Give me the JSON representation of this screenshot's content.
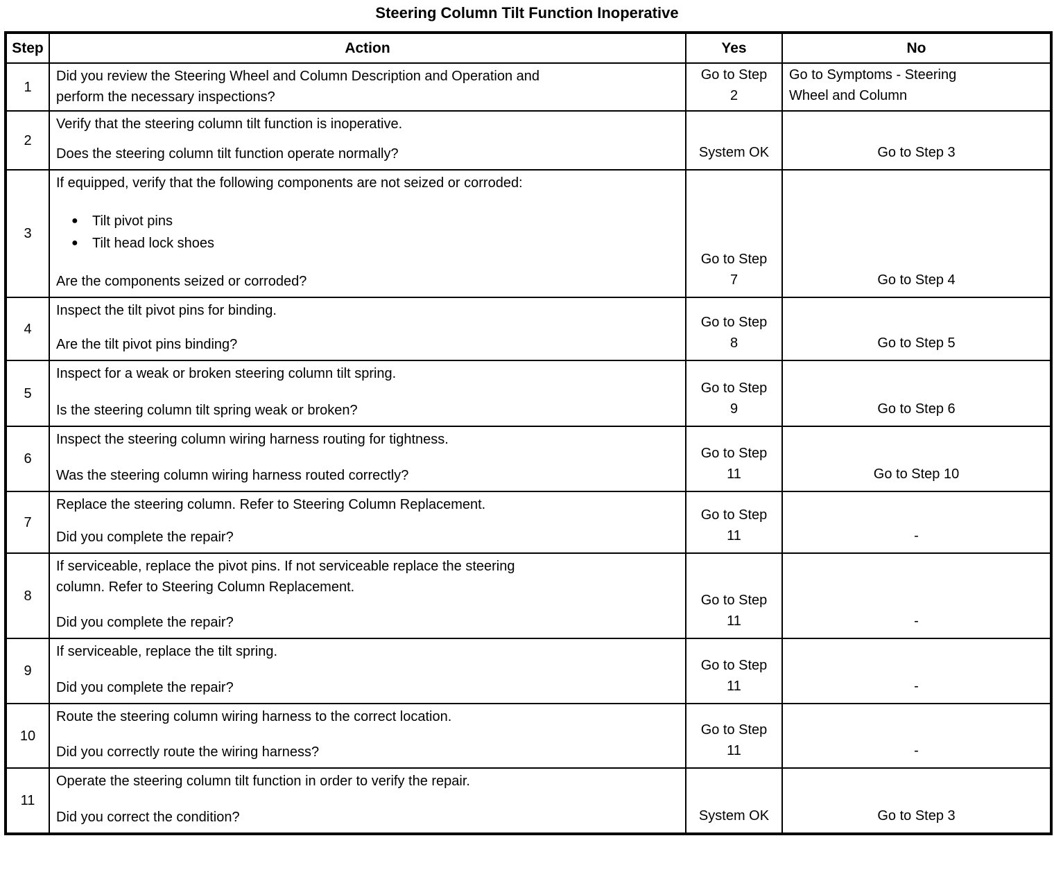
{
  "title": "Steering Column Tilt Function Inoperative",
  "table": {
    "headers": {
      "step": "Step",
      "action": "Action",
      "yes": "Yes",
      "no": "No"
    },
    "rows": [
      {
        "step": "1",
        "action": {
          "intro": [
            "Did you review the Steering Wheel and Column Description and Operation and",
            "perform the necessary inspections?"
          ],
          "bullets": [],
          "question": []
        },
        "yes": [
          "Go to Step",
          "2"
        ],
        "no": [
          "Go to Symptoms - Steering",
          "Wheel and Column"
        ]
      },
      {
        "step": "2",
        "action": {
          "intro": [
            "Verify that the steering column tilt function is inoperative."
          ],
          "bullets": [],
          "question": [
            "Does the steering column tilt function operate normally?"
          ]
        },
        "yes": [
          "System OK"
        ],
        "no": [
          "Go to Step 3"
        ]
      },
      {
        "step": "3",
        "action": {
          "intro": [
            "If equipped, verify that the following components are not seized or corroded:"
          ],
          "bullets": [
            "Tilt pivot pins",
            "Tilt head lock shoes"
          ],
          "question": [
            "Are the components seized or corroded?"
          ]
        },
        "yes": [
          "Go to Step",
          "7"
        ],
        "no": [
          "Go to Step 4"
        ]
      },
      {
        "step": "4",
        "action": {
          "intro": [
            "Inspect the tilt pivot pins for binding."
          ],
          "bullets": [],
          "question": [
            "Are the tilt pivot pins binding?"
          ]
        },
        "yes": [
          "Go to Step",
          "8"
        ],
        "no": [
          "Go to Step 5"
        ]
      },
      {
        "step": "5",
        "action": {
          "intro": [
            "Inspect for a weak or broken steering column tilt spring."
          ],
          "bullets": [],
          "question": [
            "Is the steering column tilt spring weak or broken?"
          ]
        },
        "yes": [
          "Go to Step",
          "9"
        ],
        "no": [
          "Go to Step 6"
        ]
      },
      {
        "step": "6",
        "action": {
          "intro": [
            "Inspect the steering column wiring harness routing for tightness."
          ],
          "bullets": [],
          "question": [
            "Was the steering column wiring harness routed correctly?"
          ]
        },
        "yes": [
          "Go to Step",
          "11"
        ],
        "no": [
          "Go to Step 10"
        ]
      },
      {
        "step": "7",
        "action": {
          "intro": [
            "Replace the steering column. Refer to Steering Column Replacement."
          ],
          "bullets": [],
          "question": [
            "Did you complete the repair?"
          ]
        },
        "yes": [
          "Go to Step",
          "11"
        ],
        "no": [
          "-"
        ]
      },
      {
        "step": "8",
        "action": {
          "intro": [
            "If serviceable, replace the pivot pins. If not serviceable replace the steering",
            "column. Refer to Steering Column Replacement."
          ],
          "bullets": [],
          "question": [
            "Did you complete the repair?"
          ]
        },
        "yes": [
          "Go to Step",
          "11"
        ],
        "no": [
          "-"
        ]
      },
      {
        "step": "9",
        "action": {
          "intro": [
            "If serviceable, replace the tilt spring."
          ],
          "bullets": [],
          "question": [
            "Did you complete the repair?"
          ]
        },
        "yes": [
          "Go to Step",
          "11"
        ],
        "no": [
          "-"
        ]
      },
      {
        "step": "10",
        "action": {
          "intro": [
            "Route the steering column wiring harness to the correct location."
          ],
          "bullets": [],
          "question": [
            "Did you correctly route the wiring harness?"
          ]
        },
        "yes": [
          "Go to Step",
          "11"
        ],
        "no": [
          "-"
        ]
      },
      {
        "step": "11",
        "action": {
          "intro": [
            "Operate the steering column tilt function in order to verify the repair."
          ],
          "bullets": [],
          "question": [
            "Did you correct the condition?"
          ]
        },
        "yes": [
          "System OK"
        ],
        "no": [
          "Go to Step 3"
        ]
      }
    ]
  }
}
